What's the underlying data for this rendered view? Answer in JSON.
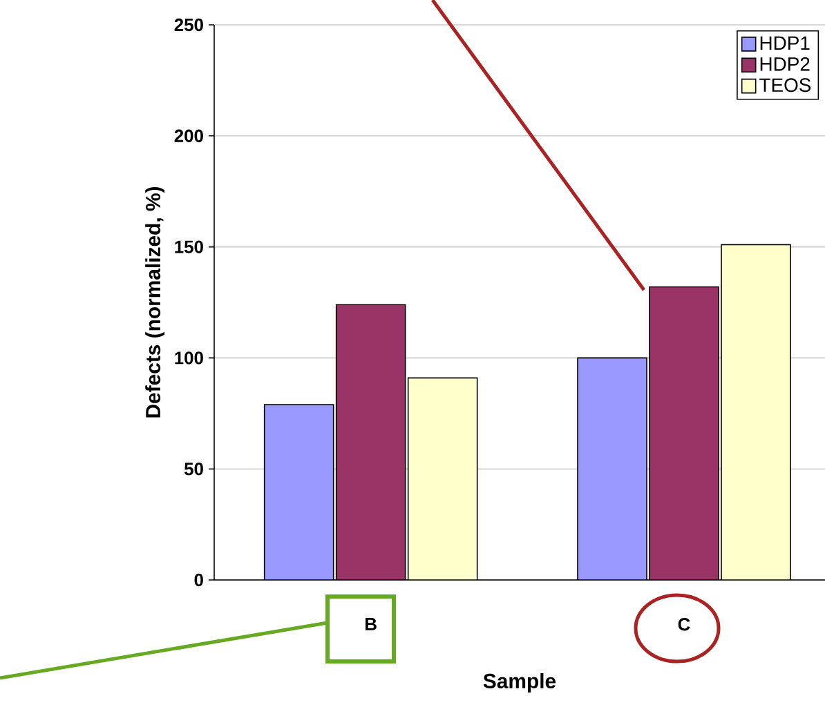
{
  "chart_data": {
    "type": "bar",
    "xlabel": "Sample",
    "ylabel": "Defects (normalized, %)",
    "categories": [
      "B",
      "C"
    ],
    "series": [
      {
        "name": "HDP1",
        "color": "#9999ff",
        "values": [
          79,
          100
        ]
      },
      {
        "name": "HDP2",
        "color": "#993366",
        "values": [
          124,
          132
        ]
      },
      {
        "name": "TEOS",
        "color": "#ffffcc",
        "values": [
          91,
          151
        ]
      }
    ],
    "ylim": [
      0,
      250
    ],
    "yticks": [
      0,
      50,
      100,
      150,
      200,
      250
    ],
    "grid": "y",
    "legend": "top right"
  }
}
